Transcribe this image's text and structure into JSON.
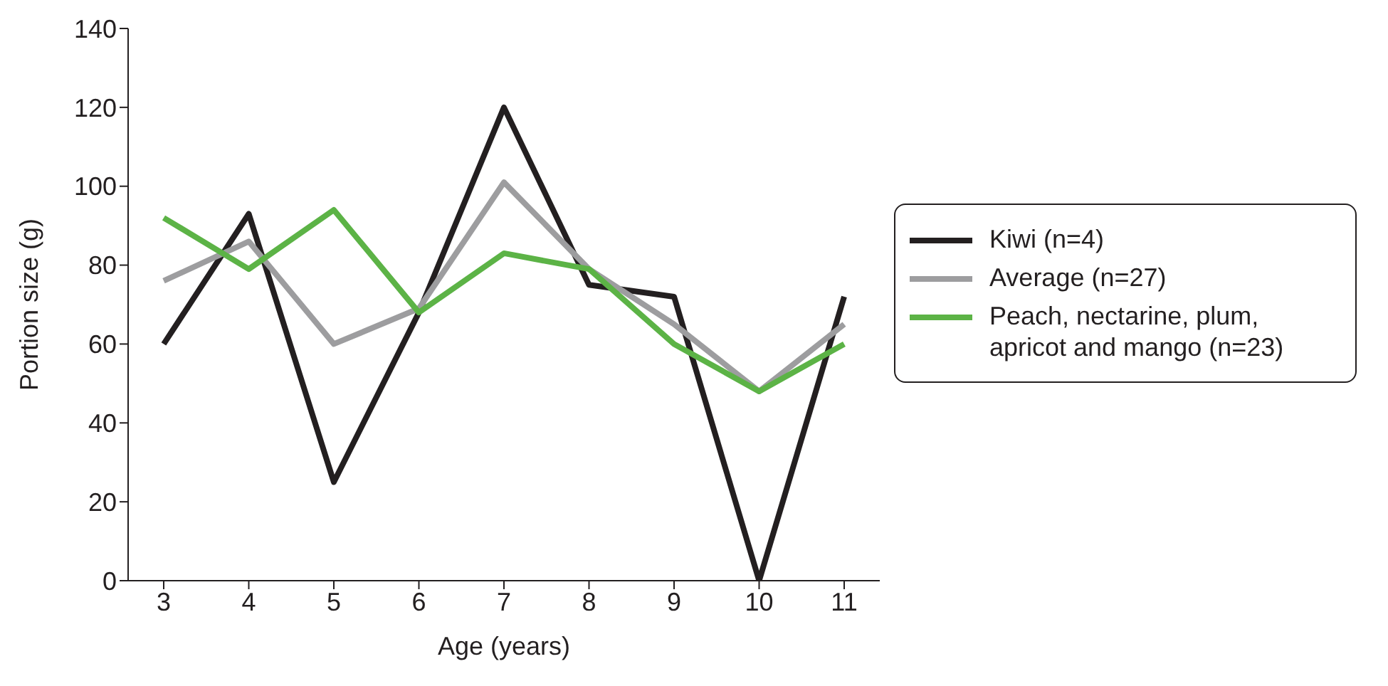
{
  "chart_data": {
    "type": "line",
    "xlabel": "Age (years)",
    "ylabel": "Portion size (g)",
    "categories": [
      "3",
      "4",
      "5",
      "6",
      "7",
      "8",
      "9",
      "10",
      "11"
    ],
    "ylim": [
      0,
      140
    ],
    "yticks": [
      0,
      20,
      40,
      60,
      80,
      100,
      120,
      140
    ],
    "grid": false,
    "legend": "right",
    "marker": "none",
    "line_style": "solid",
    "series": [
      {
        "name": "Kiwi (n=4)",
        "color": "#231f20",
        "values": [
          60,
          93,
          25,
          68,
          120,
          75,
          72,
          0,
          72
        ]
      },
      {
        "name": "Average (n=27)",
        "color": "#9d9d9f",
        "values": [
          76,
          86,
          60,
          69,
          101,
          79,
          65,
          48,
          65
        ]
      },
      {
        "name": "Peach, nectarine, plum, apricot and mango (n=23)",
        "color": "#5cb346",
        "values": [
          92,
          79,
          94,
          68,
          83,
          79,
          60,
          48,
          60
        ]
      }
    ]
  }
}
